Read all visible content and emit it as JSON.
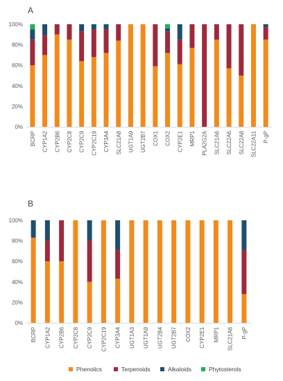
{
  "colors": {
    "Phenolics": "#F28A1C",
    "Terpenoids": "#9E2A3C",
    "Alkaloids": "#1F4E6E",
    "Phytosterols": "#1DB15A",
    "axis": "#d9d9d9"
  },
  "legend": [
    "Phenolics",
    "Terpenoids",
    "Alkaloids",
    "Phytosterols"
  ],
  "chart_data": [
    {
      "type": "bar",
      "stacked": true,
      "percent": true,
      "panel_label": "A",
      "ylim": [
        0,
        100
      ],
      "yticks": [
        "0%",
        "20%",
        "40%",
        "60%",
        "80%",
        "100%"
      ],
      "categories": [
        "BCRP",
        "CYP1A2",
        "CYP2B6",
        "CYP2C8",
        "CYP2C9",
        "CYP2C19",
        "CYP3A4",
        "SLC21A8",
        "UGT1A9",
        "UGT2B7",
        "COX1",
        "COX2",
        "CYP2E1",
        "MRP1",
        "PLA2G2A",
        "SLC21A6",
        "SLC22A6",
        "SLC22A8",
        "SLC22A11",
        "P-gP"
      ],
      "series": [
        {
          "name": "Phenolics",
          "values": [
            60,
            70,
            90,
            85,
            64,
            68,
            72,
            84,
            100,
            100,
            59,
            72,
            61,
            77,
            0,
            85,
            57,
            50,
            100,
            85
          ]
        },
        {
          "name": "Terpenoids",
          "values": [
            25,
            19,
            10,
            15,
            29,
            27,
            23,
            16,
            0,
            0,
            41,
            21,
            24,
            23,
            100,
            15,
            43,
            50,
            0,
            12
          ]
        },
        {
          "name": "Alkaloids",
          "values": [
            10,
            11,
            0,
            0,
            7,
            5,
            5,
            0,
            0,
            0,
            0,
            3,
            15,
            0,
            0,
            0,
            0,
            0,
            0,
            3
          ]
        },
        {
          "name": "Phytosterols",
          "values": [
            5,
            0,
            0,
            0,
            0,
            0,
            0,
            0,
            0,
            0,
            0,
            4,
            0,
            0,
            0,
            0,
            0,
            0,
            0,
            0
          ]
        }
      ]
    },
    {
      "type": "bar",
      "stacked": true,
      "percent": true,
      "panel_label": "B",
      "ylim": [
        0,
        100
      ],
      "yticks": [
        "0%",
        "20%",
        "40%",
        "60%",
        "80%",
        "100%"
      ],
      "categories": [
        "BCRP",
        "CYP1A2",
        "CYP2B6",
        "CYP2C8",
        "CYP2C9",
        "CYP2C19",
        "CYP3A4",
        "UGT1A3",
        "UGT1A9",
        "UGT2B4",
        "UGT2B7",
        "COX2",
        "CYP2E1",
        "MRP1",
        "SLC21A6",
        "P-gP"
      ],
      "series": [
        {
          "name": "Phenolics",
          "values": [
            83,
            60,
            60,
            100,
            40,
            100,
            43,
            100,
            100,
            100,
            100,
            100,
            100,
            100,
            100,
            28
          ]
        },
        {
          "name": "Terpenoids",
          "values": [
            0,
            20,
            40,
            0,
            40,
            0,
            28,
            0,
            0,
            0,
            0,
            0,
            0,
            0,
            0,
            43
          ]
        },
        {
          "name": "Alkaloids",
          "values": [
            17,
            20,
            0,
            0,
            20,
            0,
            29,
            0,
            0,
            0,
            0,
            0,
            0,
            0,
            0,
            29
          ]
        },
        {
          "name": "Phytosterols",
          "values": [
            0,
            0,
            0,
            0,
            0,
            0,
            0,
            0,
            0,
            0,
            0,
            0,
            0,
            0,
            0,
            0
          ]
        }
      ]
    }
  ]
}
